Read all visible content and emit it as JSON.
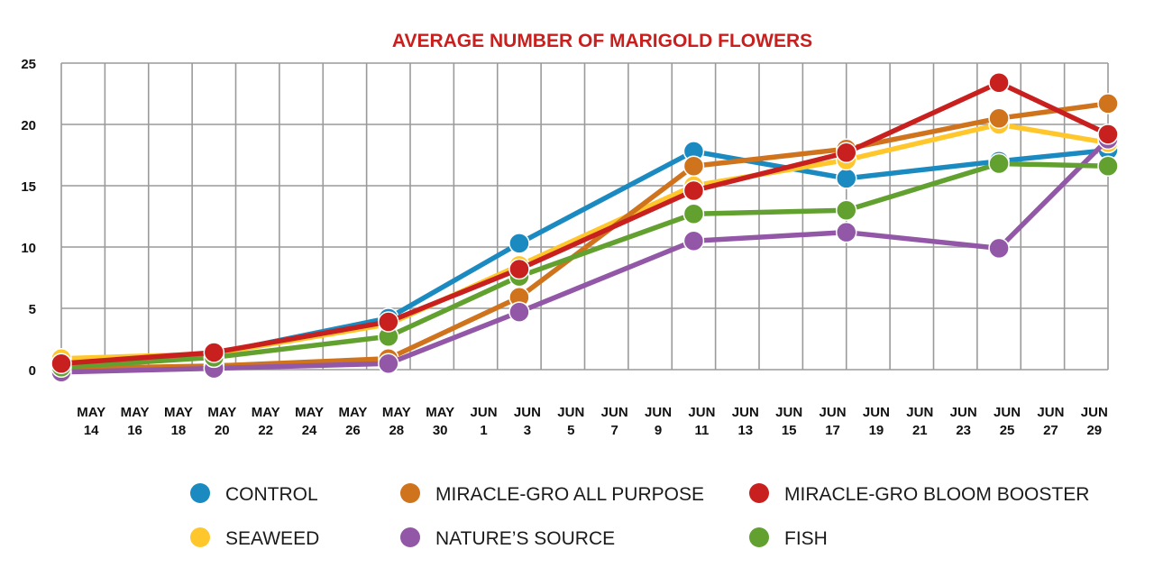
{
  "chart_data": {
    "type": "line",
    "title": "AVERAGE NUMBER OF MARIGOLD FLOWERS",
    "title_color": "#c8201e",
    "xlabel": "",
    "ylabel": "",
    "ylim": [
      0,
      25
    ],
    "y_ticks": [
      "0",
      "5",
      "10",
      "15",
      "20",
      "25"
    ],
    "x_ticks": [
      [
        "MAY",
        "14"
      ],
      [
        "MAY",
        "16"
      ],
      [
        "MAY",
        "18"
      ],
      [
        "MAY",
        "20"
      ],
      [
        "MAY",
        "22"
      ],
      [
        "MAY",
        "24"
      ],
      [
        "MAY",
        "26"
      ],
      [
        "MAY",
        "28"
      ],
      [
        "MAY",
        "30"
      ],
      [
        "JUN",
        "1"
      ],
      [
        "JUN",
        "3"
      ],
      [
        "JUN",
        "5"
      ],
      [
        "JUN",
        "7"
      ],
      [
        "JUN",
        "9"
      ],
      [
        "JUN",
        "11"
      ],
      [
        "JUN",
        "13"
      ],
      [
        "JUN",
        "15"
      ],
      [
        "JUN",
        "17"
      ],
      [
        "JUN",
        "19"
      ],
      [
        "JUN",
        "21"
      ],
      [
        "JUN",
        "23"
      ],
      [
        "JUN",
        "25"
      ],
      [
        "JUN",
        "27"
      ],
      [
        "JUN",
        "29"
      ]
    ],
    "grid": true,
    "legend_position": "bottom",
    "series": [
      {
        "name": "CONTROL",
        "color": "#1a8ac0",
        "points": [
          [
            "May 12",
            0.5
          ],
          [
            "May 19",
            1.3
          ],
          [
            "May 27",
            4.2
          ],
          [
            "Jun 2",
            10.3
          ],
          [
            "Jun 10",
            17.8
          ],
          [
            "Jun 17",
            15.6
          ],
          [
            "Jun 24",
            17.0
          ],
          [
            "Jun 29",
            17.9
          ]
        ]
      },
      {
        "name": "SEAWEED",
        "color": "#ffc72c",
        "points": [
          [
            "May 12",
            0.9
          ],
          [
            "May 19",
            1.3
          ],
          [
            "May 27",
            3.7
          ],
          [
            "Jun 2",
            8.5
          ],
          [
            "Jun 10",
            15.0
          ],
          [
            "Jun 17",
            17.1
          ],
          [
            "Jun 24",
            20.0
          ],
          [
            "Jun 29",
            18.5
          ]
        ]
      },
      {
        "name": "MIRACLE-GRO ALL PURPOSE",
        "color": "#d0731d",
        "points": [
          [
            "May 12",
            0.1
          ],
          [
            "May 19",
            0.3
          ],
          [
            "May 27",
            0.9
          ],
          [
            "Jun 2",
            5.9
          ],
          [
            "Jun 10",
            16.6
          ],
          [
            "Jun 17",
            18.0
          ],
          [
            "Jun 24",
            20.5
          ],
          [
            "Jun 29",
            21.7
          ]
        ]
      },
      {
        "name": "NATURE’S SOURCE",
        "color": "#9257a6",
        "points": [
          [
            "May 12",
            -0.2
          ],
          [
            "May 19",
            0.1
          ],
          [
            "May 27",
            0.5
          ],
          [
            "Jun 2",
            4.7
          ],
          [
            "Jun 10",
            10.5
          ],
          [
            "Jun 17",
            11.2
          ],
          [
            "Jun 24",
            9.9
          ],
          [
            "Jun 29",
            18.8
          ]
        ]
      },
      {
        "name": "FISH",
        "color": "#62a030",
        "points": [
          [
            "May 12",
            0.2
          ],
          [
            "May 19",
            1.0
          ],
          [
            "May 27",
            2.7
          ],
          [
            "Jun 2",
            7.6
          ],
          [
            "Jun 10",
            12.7
          ],
          [
            "Jun 17",
            13.0
          ],
          [
            "Jun 24",
            16.8
          ],
          [
            "Jun 29",
            16.6
          ]
        ]
      },
      {
        "name": "MIRACLE-GRO BLOOM BOOSTER",
        "color": "#c8201e",
        "points": [
          [
            "May 12",
            0.5
          ],
          [
            "May 19",
            1.4
          ],
          [
            "May 27",
            3.9
          ],
          [
            "Jun 2",
            8.2
          ],
          [
            "Jun 10",
            14.6
          ],
          [
            "Jun 17",
            17.7
          ],
          [
            "Jun 24",
            23.4
          ],
          [
            "Jun 29",
            19.2
          ]
        ]
      }
    ],
    "legend_order": [
      "CONTROL",
      "MIRACLE-GRO ALL PURPOSE",
      "MIRACLE-GRO BLOOM BOOSTER",
      "SEAWEED",
      "NATURE’S SOURCE",
      "FISH"
    ]
  }
}
